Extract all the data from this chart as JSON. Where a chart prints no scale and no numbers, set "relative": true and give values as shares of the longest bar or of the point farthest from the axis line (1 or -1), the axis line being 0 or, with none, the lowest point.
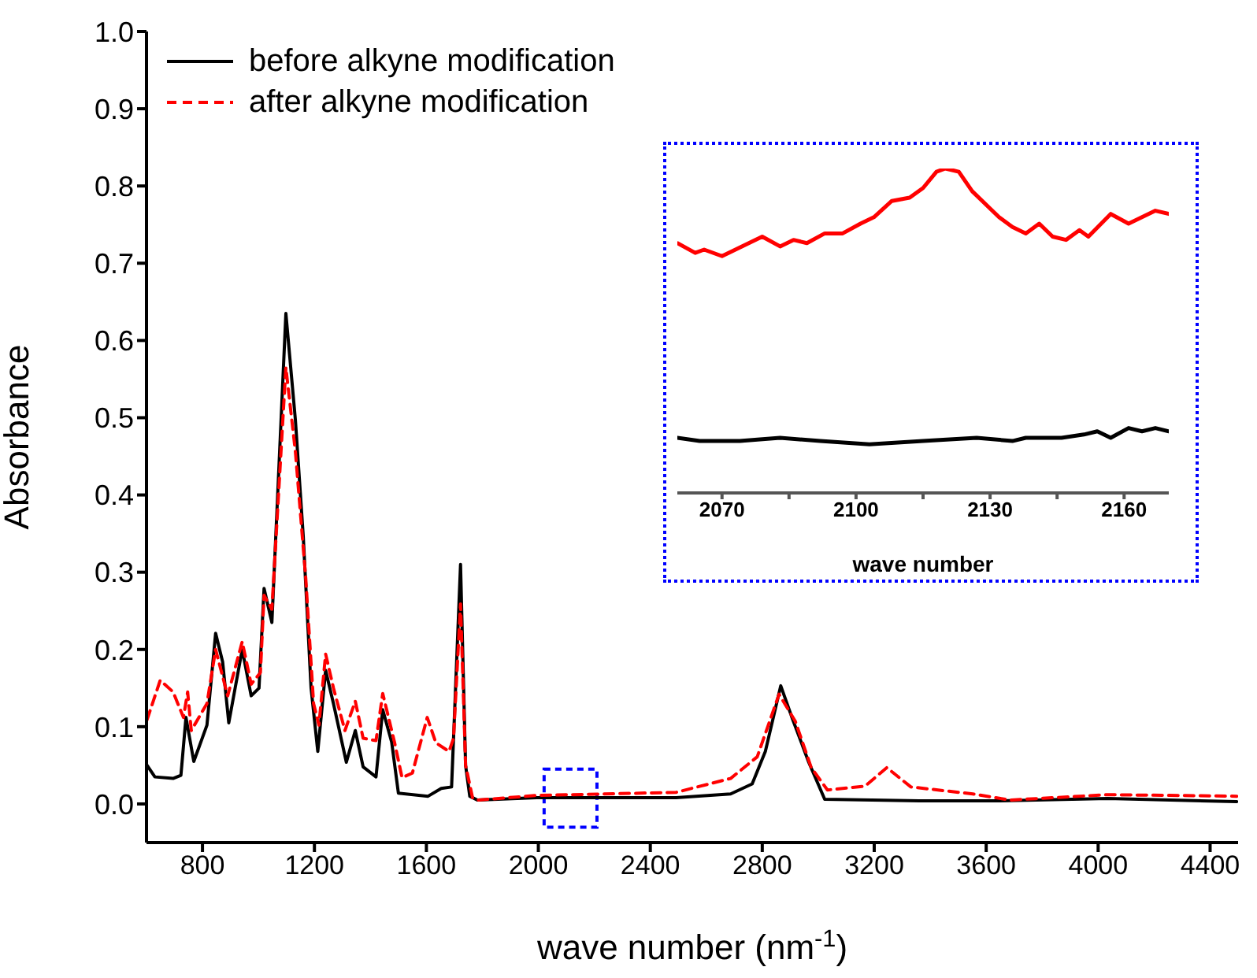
{
  "chart_data": [
    {
      "type": "line",
      "xlabel": "wave number (nm$^{-1}$)",
      "ylabel": "Absorbance",
      "xlim": [
        600,
        4500
      ],
      "xticks": [
        800,
        1200,
        1600,
        2000,
        2400,
        2800,
        3200,
        3600,
        4000,
        4400
      ],
      "ylim": [
        -0.05,
        1.0
      ],
      "yticks": [
        {
          "value": 0,
          "label": "0.0"
        },
        {
          "value": 0.1,
          "label": "0.1"
        },
        {
          "value": 0.2,
          "label": "0.2"
        },
        {
          "value": 0.3,
          "label": "0.3"
        },
        {
          "value": 0.4,
          "label": "0.4"
        },
        {
          "value": 0.5,
          "label": "0.5"
        },
        {
          "value": 0.6,
          "label": "0.6"
        },
        {
          "value": 0.7,
          "label": "0.7"
        },
        {
          "value": 0.8,
          "label": "0.8"
        },
        {
          "value": 0.9,
          "label": "0.9"
        },
        {
          "value": 1.0,
          "label": "1.0"
        }
      ],
      "legend": "top left",
      "grid": false,
      "marker": "none",
      "series": [
        {
          "name": "before alkyne modification",
          "color": "#000000",
          "line_style": "solid",
          "x": [
            602,
            630,
            695,
            723,
            741,
            769,
            816,
            847,
            872,
            894,
            942,
            974,
            1002,
            1020,
            1048,
            1098,
            1132,
            1160,
            1188,
            1212,
            1240,
            1268,
            1314,
            1346,
            1374,
            1420,
            1444,
            1476,
            1500,
            1606,
            1653,
            1690,
            1722,
            1740,
            1755,
            1782,
            1994,
            2492,
            2687,
            2764,
            2811,
            2866,
            2908,
            2966,
            3023,
            3360,
            3649,
            4034,
            4495
          ],
          "values": [
            0.05,
            0.035,
            0.033,
            0.037,
            0.112,
            0.055,
            0.102,
            0.221,
            0.184,
            0.105,
            0.2,
            0.14,
            0.15,
            0.279,
            0.235,
            0.635,
            0.497,
            0.347,
            0.15,
            0.068,
            0.173,
            0.13,
            0.054,
            0.095,
            0.048,
            0.035,
            0.122,
            0.08,
            0.014,
            0.01,
            0.02,
            0.022,
            0.31,
            0.05,
            0.01,
            0.005,
            0.008,
            0.008,
            0.013,
            0.026,
            0.068,
            0.153,
            0.11,
            0.054,
            0.006,
            0.004,
            0.004,
            0.007,
            0.003
          ]
        },
        {
          "name": "after alkyne modification",
          "color": "#ff0000",
          "line_style": "dashed",
          "x": [
            602,
            649,
            695,
            732,
            747,
            760,
            816,
            847,
            890,
            942,
            974,
            1007,
            1020,
            1048,
            1098,
            1132,
            1169,
            1197,
            1216,
            1240,
            1268,
            1309,
            1346,
            1374,
            1420,
            1444,
            1486,
            1513,
            1550,
            1603,
            1634,
            1681,
            1697,
            1722,
            1740,
            1765,
            1782,
            1994,
            2492,
            2687,
            2782,
            2860,
            2918,
            2975,
            3033,
            3167,
            3245,
            3331,
            3552,
            3686,
            4034,
            4495
          ],
          "values": [
            0.109,
            0.16,
            0.145,
            0.112,
            0.145,
            0.095,
            0.13,
            0.2,
            0.14,
            0.21,
            0.155,
            0.17,
            0.27,
            0.252,
            0.565,
            0.456,
            0.292,
            0.13,
            0.102,
            0.194,
            0.15,
            0.095,
            0.133,
            0.085,
            0.082,
            0.143,
            0.08,
            0.034,
            0.04,
            0.112,
            0.079,
            0.068,
            0.085,
            0.259,
            0.05,
            0.008,
            0.005,
            0.011,
            0.015,
            0.033,
            0.061,
            0.142,
            0.107,
            0.047,
            0.018,
            0.023,
            0.047,
            0.022,
            0.013,
            0.005,
            0.012,
            0.01
          ]
        }
      ]
    },
    {
      "type": "line",
      "relative": true,
      "xlabel": "wave number",
      "xlim": [
        2060,
        2170
      ],
      "xticks": [
        2070,
        {
          "value": 2085,
          "label": null
        },
        2100,
        {
          "value": 2115,
          "label": null
        },
        2130,
        {
          "value": 2145,
          "label": null
        },
        2160
      ],
      "tick_labels": "x",
      "grid": false,
      "legend": false,
      "marker": "none",
      "series": [
        {
          "color": "#ff0000",
          "line_style": "solid",
          "x": [
            2060,
            2064,
            2066,
            2070,
            2073,
            2076,
            2079,
            2083,
            2086,
            2089,
            2093,
            2097,
            2101,
            2104,
            2108,
            2112,
            2115,
            2118,
            2120,
            2123,
            2126,
            2132,
            2135,
            2138,
            2141,
            2144,
            2147,
            2150,
            2152,
            2157,
            2161,
            2167,
            2170
          ],
          "values": [
            0.77,
            0.74,
            0.75,
            0.73,
            0.75,
            0.77,
            0.79,
            0.76,
            0.78,
            0.77,
            0.8,
            0.8,
            0.83,
            0.85,
            0.9,
            0.91,
            0.94,
            0.99,
            1,
            0.99,
            0.93,
            0.85,
            0.82,
            0.8,
            0.83,
            0.79,
            0.78,
            0.81,
            0.79,
            0.86,
            0.83,
            0.87,
            0.86
          ]
        },
        {
          "color": "#000000",
          "line_style": "solid",
          "x": [
            2060,
            2065,
            2074,
            2083,
            2092,
            2103,
            2115,
            2127,
            2135,
            2138,
            2146,
            2151,
            2154,
            2157,
            2161,
            2164,
            2167,
            2170
          ],
          "values": [
            0.17,
            0.16,
            0.16,
            0.17,
            0.16,
            0.15,
            0.16,
            0.17,
            0.16,
            0.17,
            0.17,
            0.18,
            0.19,
            0.17,
            0.2,
            0.19,
            0.2,
            0.19
          ]
        }
      ]
    }
  ]
}
